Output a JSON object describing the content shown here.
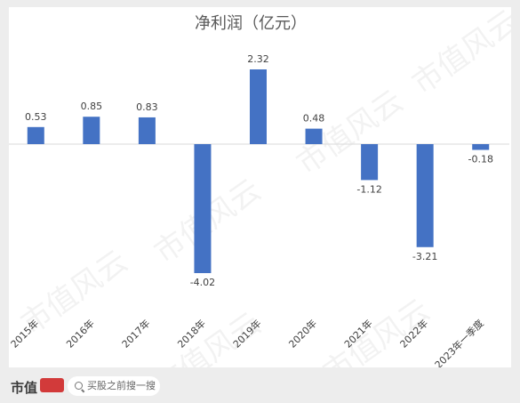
{
  "chart_data": {
    "type": "bar",
    "title": "净利润（亿元）",
    "categories": [
      "2015年",
      "2016年",
      "2017年",
      "2018年",
      "2019年",
      "2020年",
      "2021年",
      "2022年",
      "2023年一季度"
    ],
    "values": [
      0.53,
      0.85,
      0.83,
      -4.02,
      2.32,
      0.48,
      -1.12,
      -3.21,
      -0.18
    ],
    "data_labels": [
      "0.53",
      "0.85",
      "0.83",
      "-4.02",
      "2.32",
      "0.48",
      "-1.12",
      "-3.21",
      "-0.18"
    ],
    "ylim": [
      -4.02,
      2.32
    ],
    "bar_color": "#4472c4",
    "grid": false,
    "legend": "none"
  },
  "footer": {
    "brand": "市值",
    "search_text": "买股之前搜一搜"
  },
  "watermark": "市值风云"
}
